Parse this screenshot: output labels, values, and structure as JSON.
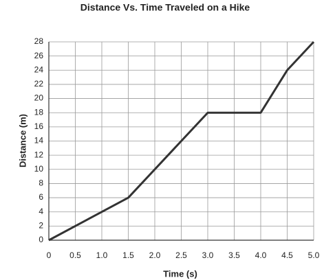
{
  "chart_data": {
    "type": "line",
    "title": "Distance Vs. Time Traveled on a Hike",
    "x_label": "Time (s)",
    "y_label": "Distance (m)",
    "x": [
      0,
      1.5,
      3,
      4,
      4.5,
      5
    ],
    "series": [
      {
        "name": null,
        "color": "#333333",
        "values": [
          0,
          6,
          18,
          18,
          24,
          28
        ]
      }
    ],
    "xlim": [
      0,
      5
    ],
    "ylim": [
      0,
      28
    ],
    "xticks": [
      0,
      0.5,
      {
        "value": 1,
        "label": "1.0"
      },
      1.5,
      {
        "value": 2,
        "label": "2.0"
      },
      2.5,
      {
        "value": 3,
        "label": "3.0"
      },
      3.5,
      {
        "value": 4,
        "label": "4.0"
      },
      4.5,
      {
        "value": 5,
        "label": "5.0"
      }
    ],
    "yticks": [
      0,
      2,
      4,
      6,
      8,
      10,
      12,
      14,
      16,
      18,
      20,
      22,
      24,
      26,
      28
    ],
    "grid": true
  }
}
